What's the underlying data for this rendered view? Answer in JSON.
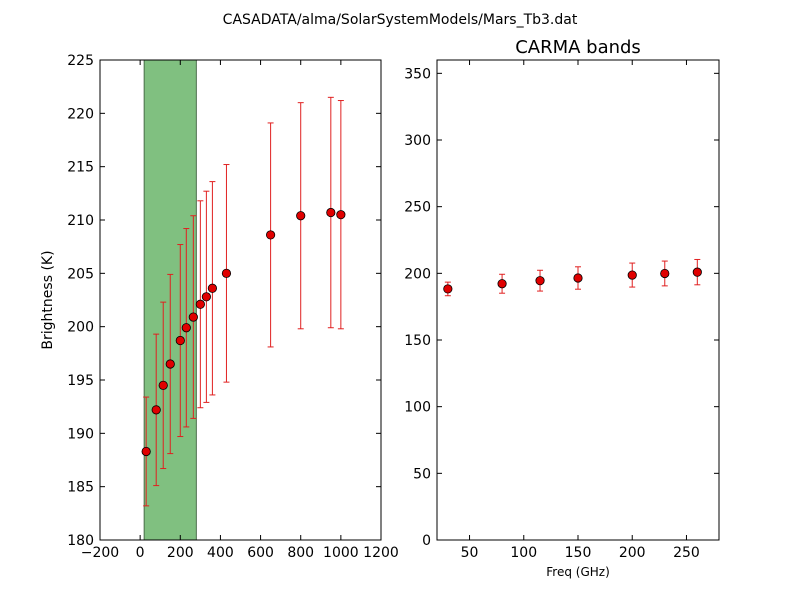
{
  "suptitle": "CASADATA/alma/SolarSystemModels/Mars_Tb3.dat",
  "colors": {
    "marker_fill": "#e00000",
    "marker_edge": "#000000",
    "errorbar": "#e02020",
    "band_fill": "#80c080",
    "band_edge": "#4a6e4a"
  },
  "chart_data": [
    {
      "type": "scatter",
      "title": "",
      "xlabel": "",
      "ylabel": "Brightness (K)",
      "xlim": [
        -200,
        1200
      ],
      "ylim": [
        180,
        225
      ],
      "xticks": [
        -200,
        0,
        200,
        400,
        600,
        800,
        1000,
        1200
      ],
      "yticks": [
        180,
        185,
        190,
        195,
        200,
        205,
        210,
        215,
        220,
        225
      ],
      "grid": false,
      "shaded_band": {
        "x_start": 20,
        "x_end": 280
      },
      "points": [
        {
          "x": 30,
          "y": 188.3,
          "err": 5.1
        },
        {
          "x": 80,
          "y": 192.2,
          "err": 7.1
        },
        {
          "x": 115,
          "y": 194.5,
          "err": 7.8
        },
        {
          "x": 150,
          "y": 196.5,
          "err": 8.4
        },
        {
          "x": 200,
          "y": 198.7,
          "err": 9.0
        },
        {
          "x": 230,
          "y": 199.9,
          "err": 9.3
        },
        {
          "x": 265,
          "y": 200.9,
          "err": 9.5
        },
        {
          "x": 300,
          "y": 202.1,
          "err": 9.7
        },
        {
          "x": 330,
          "y": 202.8,
          "err": 9.9
        },
        {
          "x": 360,
          "y": 203.6,
          "err": 10.0
        },
        {
          "x": 430,
          "y": 205.0,
          "err": 10.2
        },
        {
          "x": 650,
          "y": 208.6,
          "err": 10.5
        },
        {
          "x": 800,
          "y": 210.4,
          "err": 10.6
        },
        {
          "x": 950,
          "y": 210.7,
          "err": 10.8
        },
        {
          "x": 1000,
          "y": 210.5,
          "err": 10.7
        }
      ]
    },
    {
      "type": "scatter",
      "title": "CARMA bands",
      "xlabel": "Freq (GHz)",
      "ylabel": "",
      "xlim": [
        20,
        280
      ],
      "ylim": [
        0,
        360
      ],
      "xticks": [
        50,
        100,
        150,
        200,
        250
      ],
      "yticks": [
        0,
        50,
        100,
        150,
        200,
        250,
        300,
        350
      ],
      "grid": false,
      "points": [
        {
          "x": 30,
          "y": 188.3,
          "err": 5.1
        },
        {
          "x": 80,
          "y": 192.2,
          "err": 7.1
        },
        {
          "x": 115,
          "y": 194.5,
          "err": 7.8
        },
        {
          "x": 150,
          "y": 196.5,
          "err": 8.4
        },
        {
          "x": 200,
          "y": 198.7,
          "err": 9.0
        },
        {
          "x": 230,
          "y": 199.9,
          "err": 9.3
        },
        {
          "x": 260,
          "y": 200.9,
          "err": 9.5
        }
      ]
    }
  ]
}
